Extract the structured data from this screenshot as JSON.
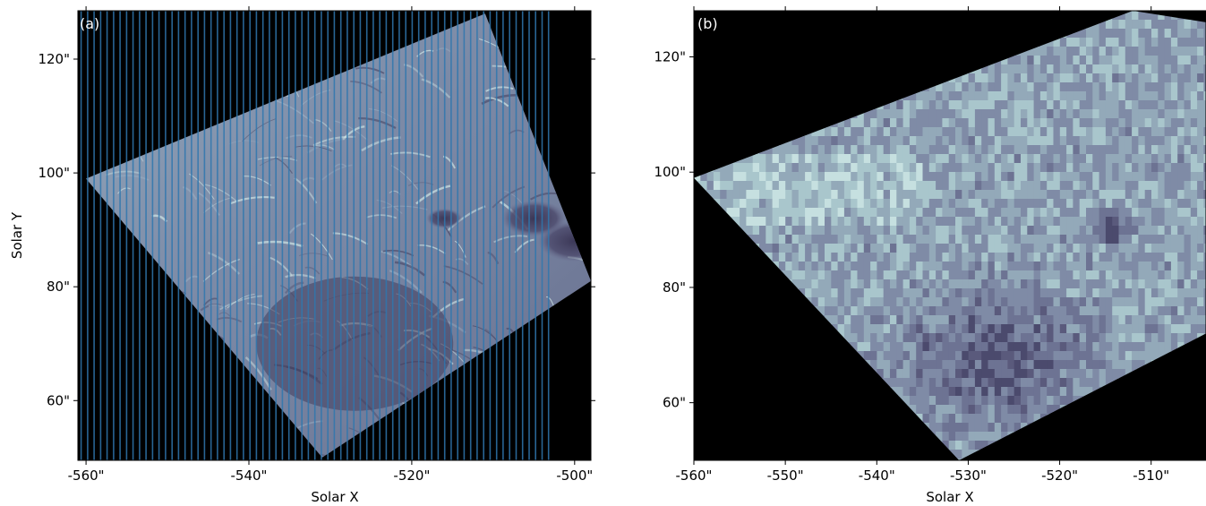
{
  "chart_data": [
    {
      "type": "heatmap",
      "panel_label": "(a)",
      "xlabel": "Solar X",
      "ylabel": "Solar Y",
      "xlim": [
        -561,
        -498
      ],
      "ylim": [
        49.5,
        128.5
      ],
      "x_ticks": [
        -560,
        -540,
        -520,
        -500
      ],
      "x_tick_labels": [
        "-560\"",
        "-540\"",
        "-520\"",
        "-500\""
      ],
      "y_ticks": [
        60,
        80,
        100,
        120
      ],
      "y_tick_labels": [
        "60\"",
        "80\"",
        "100\"",
        "120\""
      ],
      "background": "black",
      "colormap": "bone-purple",
      "rotated_field_corners": [
        [
          -560,
          99
        ],
        [
          -511,
          128
        ],
        [
          -498,
          81
        ],
        [
          -531,
          50
        ]
      ],
      "slit_overlay": {
        "color": "#2f77ae",
        "x_start": -560.6,
        "x_end": -503.2,
        "count": 73
      },
      "sunspots": [
        {
          "x": -516,
          "y": 92,
          "r": 2.2
        },
        {
          "x": -500,
          "y": 88,
          "r": 4.5
        },
        {
          "x": -505,
          "y": 92,
          "r": 4.0
        }
      ]
    },
    {
      "type": "heatmap",
      "panel_label": "(b)",
      "xlabel": "Solar X",
      "ylabel": "",
      "xlim": [
        -560,
        -504
      ],
      "ylim": [
        50,
        128
      ],
      "x_ticks": [
        -560,
        -550,
        -540,
        -530,
        -520,
        -510
      ],
      "x_tick_labels": [
        "-560\"",
        "-550\"",
        "-540\"",
        "-530\"",
        "-520\"",
        "-510\""
      ],
      "y_ticks": [
        60,
        80,
        100,
        120
      ],
      "y_tick_labels": [
        "60\"",
        "80\"",
        "100\"",
        "120\""
      ],
      "background": "black",
      "colormap": "bone-purple",
      "rotated_field_corners": [
        [
          -560,
          99
        ],
        [
          -512,
          128
        ],
        [
          -504,
          126
        ],
        [
          -504,
          72
        ],
        [
          -531,
          50
        ]
      ],
      "pixelated": true,
      "sunspots": [
        {
          "x": -515,
          "y": 91,
          "r": 1.6
        }
      ]
    }
  ]
}
